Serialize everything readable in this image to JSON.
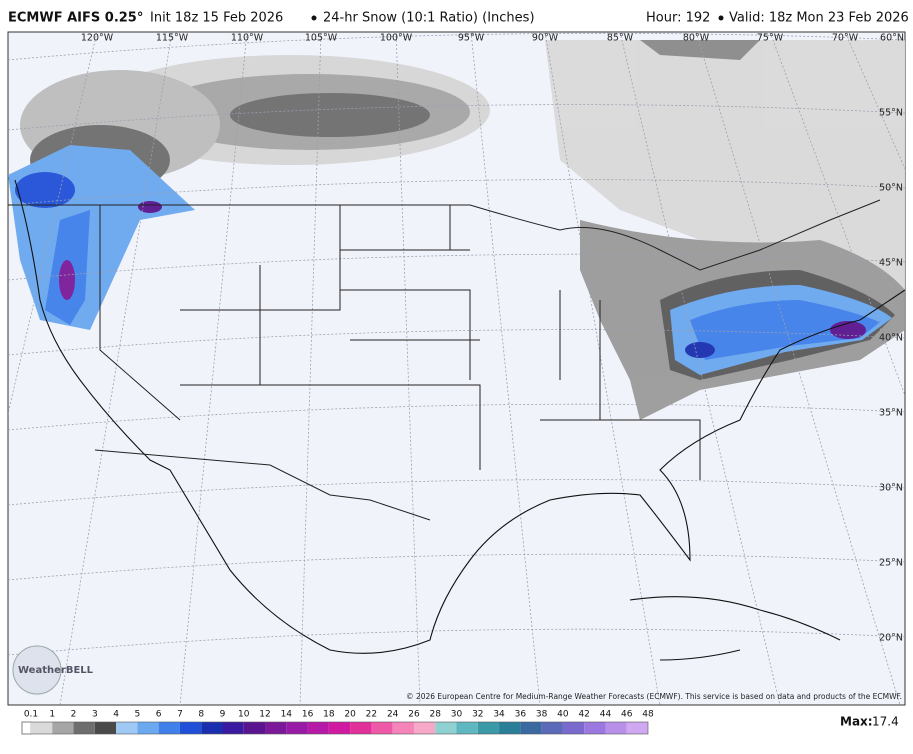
{
  "header": {
    "title": "ECMWF AIFS 0.25°",
    "init": "Init 18z 15 Feb 2026",
    "product": "24-hr Snow (10:1 Ratio) (Inches)",
    "hour": "Hour: 192",
    "valid": "Valid: 18z Mon 23 Feb 2026"
  },
  "map": {
    "lon_labels": [
      "120°W",
      "115°W",
      "110°W",
      "105°W",
      "100°W",
      "95°W",
      "90°W",
      "85°W",
      "80°W",
      "75°W",
      "70°W"
    ],
    "lat_labels": [
      "60°N",
      "55°N",
      "50°N",
      "45°N",
      "40°N",
      "35°N",
      "30°N",
      "25°N",
      "20°N"
    ],
    "credit": "© 2026 European Centre for Medium-Range Weather Forecasts (ECMWF). This service is based on data and products of the ECMWF.",
    "logo": "WeatherBELL"
  },
  "legend": {
    "ticks": [
      0.1,
      1,
      2,
      3,
      4,
      5,
      6,
      7,
      8,
      9,
      10,
      12,
      14,
      16,
      18,
      20,
      22,
      24,
      26,
      28,
      30,
      32,
      34,
      36,
      38,
      40,
      42,
      44,
      46,
      48
    ],
    "colors": [
      "#d9d9d9",
      "#a6a6a6",
      "#6e6e6e",
      "#4a4a4a",
      "#9ec9f5",
      "#6aa8f0",
      "#3f80ea",
      "#2050d8",
      "#1a2fb0",
      "#3a1aa0",
      "#5a148f",
      "#7a1a9a",
      "#9a1aa8",
      "#b81aa8",
      "#d01aa0",
      "#e2309a",
      "#ef5aa8",
      "#f584b8",
      "#f7a8c8",
      "#8fd0d0",
      "#5fb8c0",
      "#3a9aa8",
      "#2a7f98",
      "#3a6aa0",
      "#5a6ab8",
      "#7a6ad0",
      "#9a78e0",
      "#b890ea",
      "#d0a8f2"
    ],
    "max_label": "Max:",
    "max": 17.4
  }
}
